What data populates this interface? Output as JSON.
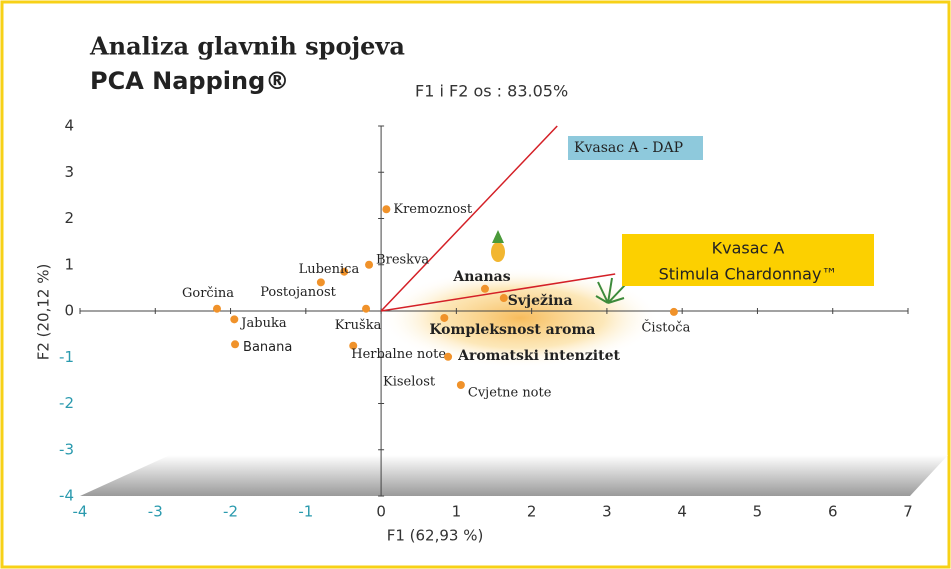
{
  "chart_data": {
    "type": "scatter",
    "title": "Analiza glavnih spojeva",
    "subtitle": "PCA Napping®",
    "note": "F1 i F2 os : 83.05%",
    "xlabel": "F1 (62,93 %)",
    "ylabel": "F2 (20,12 %)",
    "xlim": [
      -4,
      7
    ],
    "ylim": [
      -4,
      4
    ],
    "xticks": [
      -4,
      -3,
      -2,
      -1,
      0,
      1,
      2,
      3,
      4,
      5,
      6,
      7
    ],
    "yticks": [
      -4,
      -3,
      -2,
      -1,
      0,
      1,
      2,
      3,
      4
    ],
    "color": "#f0922a",
    "series": [
      {
        "bold": false,
        "labels": [
          "Kremoznost",
          "Breskva",
          "Lubenica",
          "Postojanost",
          "Gorčina",
          "Jabuka",
          "Banana",
          "Kruška",
          "Herbalne note",
          "Cvjetne note",
          "Čistoča"
        ],
        "x": [
          0.07,
          -0.16,
          -0.49,
          -0.8,
          -2.18,
          -1.95,
          -1.94,
          -0.2,
          -0.37,
          1.06,
          3.89
        ],
        "values": [
          2.2,
          1.0,
          0.85,
          0.62,
          0.05,
          -0.18,
          -0.72,
          0.05,
          -0.75,
          -1.6,
          -0.02
        ]
      },
      {
        "bold": true,
        "labels": [
          "Ananas",
          "Svježina",
          "Kompleksnost aroma",
          "Aromatski intenzitet"
        ],
        "x": [
          1.38,
          1.63,
          0.84,
          0.89
        ],
        "values": [
          0.48,
          0.28,
          -0.15,
          -0.99
        ]
      }
    ],
    "annotations": [
      "Kiselost"
    ],
    "vectors": [
      {
        "label_lines": [
          "Kvasac A - DAP"
        ],
        "x": 2.34,
        "y": 4.0,
        "color": "#d42027",
        "box": "#8ec9dc"
      },
      {
        "label_lines": [
          "Kvasac A",
          "Stimula Chardonnay™"
        ],
        "x": 3.11,
        "y": 0.8,
        "color": "#d42027",
        "box": "#fcd000"
      }
    ]
  }
}
